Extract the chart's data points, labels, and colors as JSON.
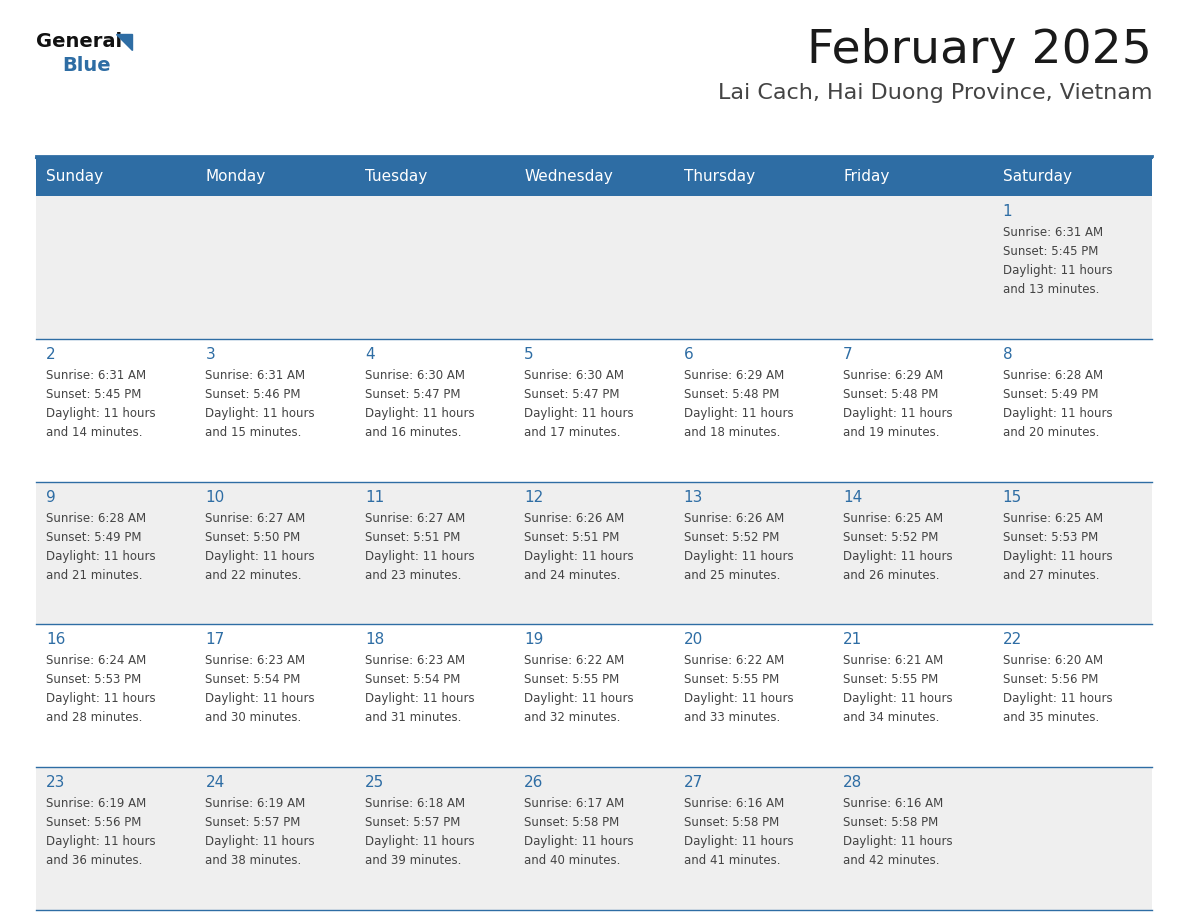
{
  "title": "February 2025",
  "subtitle": "Lai Cach, Hai Duong Province, Vietnam",
  "header_bg": "#2E6DA4",
  "header_text": "#FFFFFF",
  "day_names": [
    "Sunday",
    "Monday",
    "Tuesday",
    "Wednesday",
    "Thursday",
    "Friday",
    "Saturday"
  ],
  "cell_bg_light": "#EFEFEF",
  "cell_bg_white": "#FFFFFF",
  "line_color": "#2E6DA4",
  "title_color": "#1a1a1a",
  "subtitle_color": "#444444",
  "day_num_color": "#2E6DA4",
  "info_color": "#444444",
  "logo_text_color": "#111111",
  "logo_blue_color": "#2E6DA4",
  "calendar": [
    [
      null,
      null,
      null,
      null,
      null,
      null,
      1
    ],
    [
      2,
      3,
      4,
      5,
      6,
      7,
      8
    ],
    [
      9,
      10,
      11,
      12,
      13,
      14,
      15
    ],
    [
      16,
      17,
      18,
      19,
      20,
      21,
      22
    ],
    [
      23,
      24,
      25,
      26,
      27,
      28,
      null
    ]
  ],
  "sunrise": {
    "1": "6:31 AM",
    "2": "6:31 AM",
    "3": "6:31 AM",
    "4": "6:30 AM",
    "5": "6:30 AM",
    "6": "6:29 AM",
    "7": "6:29 AM",
    "8": "6:28 AM",
    "9": "6:28 AM",
    "10": "6:27 AM",
    "11": "6:27 AM",
    "12": "6:26 AM",
    "13": "6:26 AM",
    "14": "6:25 AM",
    "15": "6:25 AM",
    "16": "6:24 AM",
    "17": "6:23 AM",
    "18": "6:23 AM",
    "19": "6:22 AM",
    "20": "6:22 AM",
    "21": "6:21 AM",
    "22": "6:20 AM",
    "23": "6:19 AM",
    "24": "6:19 AM",
    "25": "6:18 AM",
    "26": "6:17 AM",
    "27": "6:16 AM",
    "28": "6:16 AM"
  },
  "sunset": {
    "1": "5:45 PM",
    "2": "5:45 PM",
    "3": "5:46 PM",
    "4": "5:47 PM",
    "5": "5:47 PM",
    "6": "5:48 PM",
    "7": "5:48 PM",
    "8": "5:49 PM",
    "9": "5:49 PM",
    "10": "5:50 PM",
    "11": "5:51 PM",
    "12": "5:51 PM",
    "13": "5:52 PM",
    "14": "5:52 PM",
    "15": "5:53 PM",
    "16": "5:53 PM",
    "17": "5:54 PM",
    "18": "5:54 PM",
    "19": "5:55 PM",
    "20": "5:55 PM",
    "21": "5:55 PM",
    "22": "5:56 PM",
    "23": "5:56 PM",
    "24": "5:57 PM",
    "25": "5:57 PM",
    "26": "5:58 PM",
    "27": "5:58 PM",
    "28": "5:58 PM"
  },
  "daylight_hours": 11,
  "daylight_minutes": {
    "1": 13,
    "2": 14,
    "3": 15,
    "4": 16,
    "5": 17,
    "6": 18,
    "7": 19,
    "8": 20,
    "9": 21,
    "10": 22,
    "11": 23,
    "12": 24,
    "13": 25,
    "14": 26,
    "15": 27,
    "16": 28,
    "17": 30,
    "18": 31,
    "19": 32,
    "20": 33,
    "21": 34,
    "22": 35,
    "23": 36,
    "24": 38,
    "25": 39,
    "26": 40,
    "27": 41,
    "28": 42
  }
}
